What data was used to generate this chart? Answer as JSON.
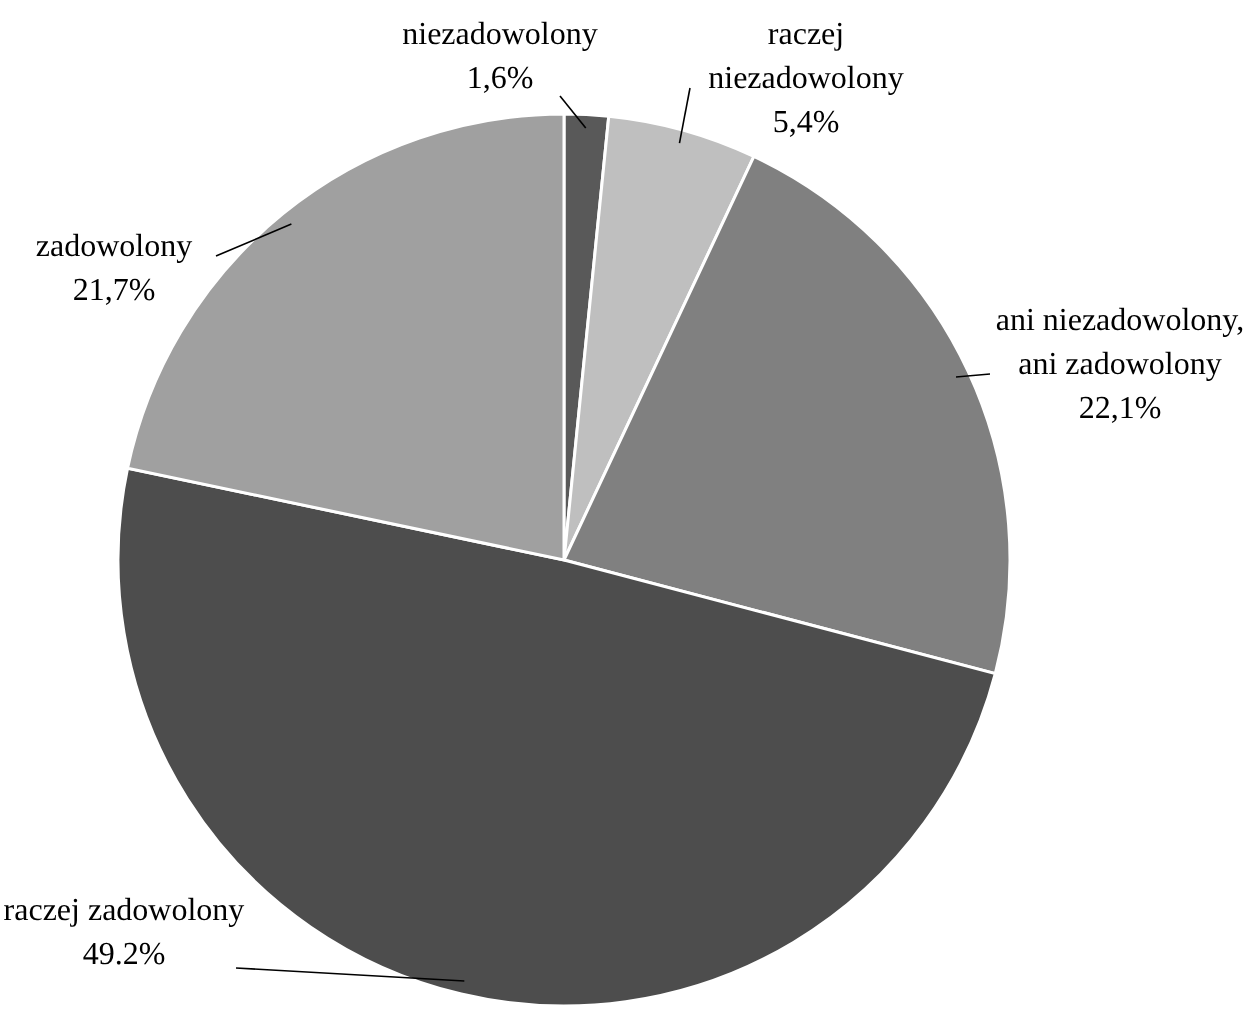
{
  "chart_data": {
    "type": "pie",
    "categories": [
      "niezadowolony",
      "raczej niezadowolony",
      "ani niezadowolony, ani zadowolony",
      "raczej zadowolony",
      "zadowolony"
    ],
    "values": [
      1.6,
      5.4,
      22.1,
      49.2,
      21.7
    ],
    "value_labels": [
      "1,6%",
      "5,4%",
      "22,1%",
      "49.2%",
      "21,7%"
    ],
    "colors": [
      "#595959",
      "#bfbfbf",
      "#808080",
      "#4d4d4d",
      "#a0a0a0"
    ],
    "legend": false
  }
}
